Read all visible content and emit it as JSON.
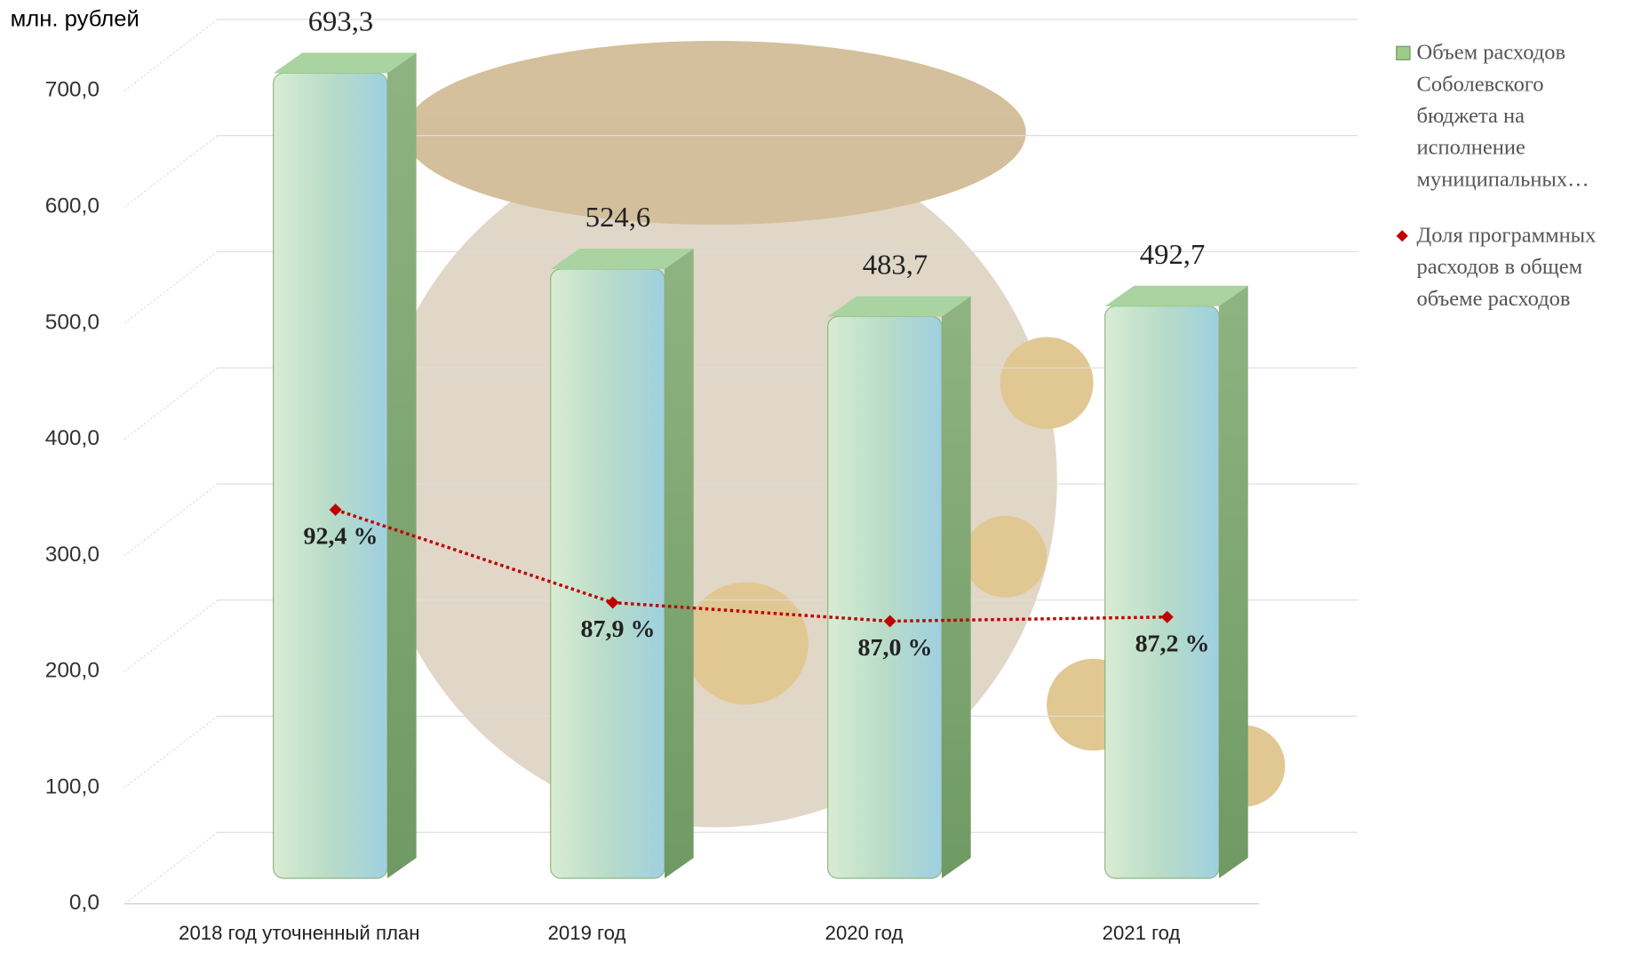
{
  "chart_data": {
    "type": "bar",
    "y_axis_label": "млн. рублей",
    "categories": [
      "2018 год уточненный план",
      "2019 год",
      "2020 год",
      "2021 год"
    ],
    "series": [
      {
        "name": "Объем расходов Соболевского бюджета на исполнение муниципальных…",
        "type": "bar",
        "color": "#9ccc8a",
        "values": [
          693.3,
          524.6,
          483.7,
          492.7
        ],
        "value_labels": [
          "693,3",
          "524,6",
          "483,7",
          "492,7"
        ]
      },
      {
        "name": "Доля программных расходов в общем объеме расходов",
        "type": "line",
        "axis": "y2",
        "color": "#c00000",
        "values": [
          92.4,
          87.9,
          87.0,
          87.2
        ],
        "value_labels": [
          "92,4 %",
          "87,9 %",
          "87,0 %",
          "87,2 %"
        ]
      }
    ],
    "ylim": [
      0,
      700
    ],
    "yticks": [
      {
        "value": 0,
        "label": "0,0"
      },
      {
        "value": 100,
        "label": "100,0"
      },
      {
        "value": 200,
        "label": "200,0"
      },
      {
        "value": 300,
        "label": "300,0"
      },
      {
        "value": 400,
        "label": "400,0"
      },
      {
        "value": 500,
        "label": "500,0"
      },
      {
        "value": 600,
        "label": "600,0"
      },
      {
        "value": 700,
        "label": "700,0"
      }
    ],
    "y2lim": [
      73.3,
      112.7
    ],
    "grid": true,
    "legend": "right"
  }
}
